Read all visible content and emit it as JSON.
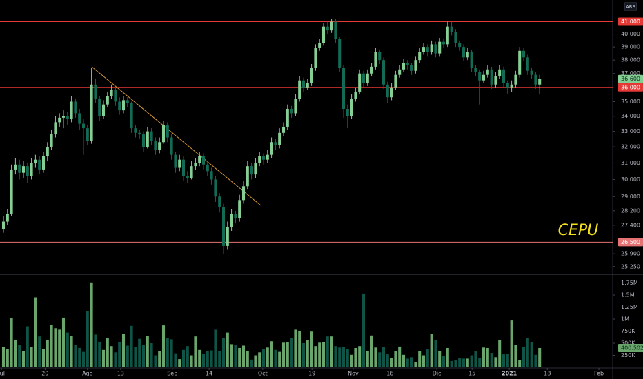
{
  "chart_data": {
    "type": "candlestick",
    "currency": "ARS",
    "annotation": "CEPU",
    "log_scale": true,
    "ylim": [
      24.9,
      42.8
    ],
    "yticks": [
      {
        "value": 25.25,
        "label": "25.250"
      },
      {
        "value": 25.9,
        "label": "25.900"
      },
      {
        "value": 27.4,
        "label": "27.400"
      },
      {
        "value": 28.2,
        "label": "28.200"
      },
      {
        "value": 29,
        "label": "29.000"
      },
      {
        "value": 30,
        "label": "30.000"
      },
      {
        "value": 31,
        "label": "31.000"
      },
      {
        "value": 32,
        "label": "32.000"
      },
      {
        "value": 33,
        "label": "33.000"
      },
      {
        "value": 34,
        "label": "34.000"
      },
      {
        "value": 35,
        "label": "35.000"
      },
      {
        "value": 37,
        "label": "37.000"
      },
      {
        "value": 38,
        "label": "38.000"
      },
      {
        "value": 39,
        "label": "39.000"
      },
      {
        "value": 40,
        "label": "40.000"
      }
    ],
    "xlim": [
      -0.862,
      152.241
    ],
    "xticks": [
      {
        "value": -0.5,
        "label": "Jul"
      },
      {
        "value": 10.4,
        "label": "20"
      },
      {
        "value": 21.0,
        "label": "Ago"
      },
      {
        "value": 29.3,
        "label": "13"
      },
      {
        "value": 42.2,
        "label": "Sep"
      },
      {
        "value": 51.4,
        "label": "14"
      },
      {
        "value": 64.8,
        "label": "Oct"
      },
      {
        "value": 77.1,
        "label": "19"
      },
      {
        "value": 87.4,
        "label": "Nov"
      },
      {
        "value": 96.6,
        "label": "16"
      },
      {
        "value": 108.3,
        "label": "Dic"
      },
      {
        "value": 117.1,
        "label": "15"
      },
      {
        "value": 126.4,
        "label": "2021"
      },
      {
        "value": 135.9,
        "label": "18"
      },
      {
        "value": 148.8,
        "label": "Feb"
      }
    ],
    "up_color": "#86cf94",
    "down_color": "#136b56",
    "volume_up_color": "#6aa56c",
    "volume_down_color": "#0f5446",
    "levels": [
      {
        "value": 41,
        "label": "41.000",
        "color": "#e53935"
      },
      {
        "value": 36,
        "label": "36.000",
        "color": "#e53935"
      },
      {
        "value": 26.5,
        "label": "26.500",
        "color": "#e57373"
      }
    ],
    "trendline": {
      "from": [
        22.07,
        37.5
      ],
      "to": [
        64.3,
        28.5
      ],
      "color": "#d89a3a"
    },
    "last_price_label": "36.600",
    "last_volume_label": "400.502K",
    "open": [
      27.2,
      27.6,
      28.0,
      30.6,
      30.9,
      30.4,
      30.8,
      30.2,
      31.0,
      31.2,
      30.6,
      31.4,
      32.0,
      32.8,
      33.6,
      33.9,
      34.0,
      33.8,
      35.0,
      34.2,
      33.5,
      33.2,
      32.4,
      36.2,
      35.2,
      34.0,
      34.8,
      35.4,
      35.8,
      35.0,
      34.4,
      35.1,
      34.9,
      33.2,
      32.9,
      32.8,
      32.0,
      33.0,
      32.4,
      31.8,
      32.3,
      33.4,
      32.6,
      31.5,
      30.7,
      31.2,
      30.2,
      30.1,
      30.8,
      31.0,
      31.4,
      30.9,
      30.5,
      30.0,
      29.0,
      28.4,
      26.3,
      27.3,
      28.0,
      27.8,
      28.8,
      29.6,
      30.8,
      30.3,
      31.0,
      31.4,
      31.2,
      31.5,
      32.3,
      32.1,
      32.9,
      33.3,
      34.5,
      34.2,
      35.2,
      36.5,
      36.0,
      36.3,
      37.4,
      38.9,
      39.3,
      40.6,
      40.3,
      41.0,
      39.6,
      37.4,
      34.5,
      34.0,
      35.2,
      35.7,
      37.0,
      36.3,
      37.0,
      37.5,
      38.6,
      38.0,
      36.2,
      35.3,
      36.0,
      36.9,
      37.3,
      37.8,
      37.6,
      37.2,
      38.0,
      38.6,
      39.0,
      38.6,
      39.2,
      38.5,
      39.4,
      39.2,
      40.6,
      40.2,
      39.3,
      39.0,
      38.2,
      38.6,
      37.4,
      37.1,
      36.5,
      36.9,
      37.3,
      36.2,
      36.8,
      37.3,
      36.3,
      36.0,
      36.2,
      36.9,
      38.7,
      38.2,
      37.2,
      36.9,
      36.2
    ],
    "high": [
      27.9,
      28.3,
      30.9,
      31.3,
      31.2,
      31.1,
      31.0,
      31.3,
      31.5,
      31.4,
      31.7,
      32.3,
      33.1,
      34.0,
      34.2,
      34.4,
      34.3,
      35.4,
      35.2,
      34.5,
      33.8,
      33.4,
      37.4,
      36.6,
      35.4,
      35.1,
      35.7,
      36.2,
      36.0,
      35.3,
      35.4,
      35.3,
      35.0,
      33.4,
      33.1,
      33.0,
      33.3,
      33.2,
      32.6,
      32.6,
      33.7,
      33.6,
      32.8,
      31.7,
      31.5,
      31.4,
      30.5,
      31.1,
      31.3,
      31.7,
      31.6,
      31.1,
      30.7,
      30.2,
      29.2,
      28.6,
      27.6,
      28.3,
      28.2,
      29.1,
      29.9,
      31.1,
      31.0,
      31.3,
      31.7,
      31.6,
      31.8,
      32.6,
      32.5,
      33.2,
      33.6,
      34.8,
      34.7,
      35.5,
      36.8,
      36.7,
      36.6,
      37.7,
      39.2,
      39.6,
      40.9,
      41.0,
      41.2,
      41.2,
      39.8,
      37.6,
      34.8,
      35.5,
      36.0,
      37.3,
      37.2,
      37.3,
      37.8,
      38.9,
      38.8,
      38.2,
      36.4,
      36.3,
      37.2,
      37.6,
      38.1,
      38.0,
      37.8,
      38.3,
      38.9,
      39.3,
      39.2,
      39.5,
      39.4,
      39.7,
      39.6,
      41.0,
      41.0,
      40.4,
      39.5,
      39.2,
      38.9,
      38.8,
      37.6,
      37.3,
      37.2,
      37.6,
      37.5,
      37.1,
      37.6,
      37.5,
      36.5,
      36.5,
      37.2,
      39.0,
      38.9,
      38.4,
      37.4,
      37.1,
      36.9
    ],
    "low": [
      27.0,
      27.4,
      27.9,
      30.3,
      30.0,
      30.1,
      29.8,
      30.0,
      30.7,
      30.3,
      30.4,
      31.1,
      31.8,
      32.6,
      33.3,
      33.2,
      33.4,
      33.6,
      33.9,
      33.1,
      31.5,
      32.1,
      32.2,
      34.9,
      33.7,
      33.8,
      34.6,
      35.2,
      34.7,
      34.1,
      34.2,
      34.6,
      32.9,
      32.6,
      32.5,
      31.7,
      31.9,
      32.1,
      31.5,
      31.6,
      32.2,
      32.3,
      31.2,
      30.4,
      30.5,
      29.9,
      29.8,
      30.0,
      30.6,
      30.8,
      30.6,
      30.2,
      29.7,
      28.7,
      28.1,
      25.9,
      26.1,
      27.1,
      27.5,
      27.6,
      28.6,
      29.4,
      30.0,
      30.1,
      30.8,
      30.9,
      31.0,
      31.3,
      31.8,
      31.9,
      32.7,
      33.1,
      33.9,
      34.0,
      35.0,
      35.7,
      35.8,
      36.1,
      37.2,
      38.7,
      39.1,
      40.0,
      40.1,
      39.3,
      37.1,
      33.9,
      33.2,
      33.8,
      35.0,
      35.5,
      36.0,
      36.1,
      36.8,
      37.3,
      37.7,
      35.9,
      34.9,
      35.1,
      35.8,
      36.7,
      37.1,
      37.3,
      36.9,
      37.0,
      37.8,
      38.4,
      38.3,
      38.4,
      38.2,
      38.3,
      38.9,
      39.0,
      39.9,
      39.0,
      38.7,
      37.9,
      38.0,
      37.1,
      36.8,
      34.8,
      36.3,
      36.7,
      35.9,
      36.0,
      36.6,
      36.0,
      35.5,
      35.7,
      36.0,
      36.7,
      37.9,
      36.9,
      36.6,
      35.9,
      35.5
    ],
    "close": [
      27.6,
      28.0,
      30.6,
      30.9,
      30.4,
      30.8,
      30.2,
      31.0,
      31.2,
      30.6,
      31.4,
      32.0,
      32.8,
      33.6,
      33.9,
      34.0,
      33.8,
      35.0,
      34.2,
      33.5,
      33.2,
      32.4,
      36.2,
      35.2,
      34.0,
      34.8,
      35.4,
      35.8,
      35.0,
      34.4,
      35.1,
      34.9,
      33.2,
      32.9,
      32.8,
      32.0,
      33.0,
      32.4,
      31.8,
      32.3,
      33.4,
      32.6,
      31.5,
      30.7,
      31.2,
      30.2,
      30.1,
      30.8,
      31.0,
      31.4,
      30.9,
      30.5,
      30.0,
      29.0,
      28.4,
      26.3,
      27.3,
      28.0,
      27.8,
      28.8,
      29.6,
      30.8,
      30.3,
      31.0,
      31.4,
      31.2,
      31.5,
      32.3,
      32.1,
      32.9,
      33.3,
      34.5,
      34.2,
      35.2,
      36.5,
      36.0,
      36.3,
      37.4,
      38.9,
      39.3,
      40.6,
      40.3,
      41.0,
      39.6,
      37.4,
      34.5,
      34.0,
      35.2,
      35.7,
      37.0,
      36.3,
      37.0,
      37.5,
      38.6,
      38.0,
      36.2,
      35.3,
      36.0,
      36.9,
      37.3,
      37.8,
      37.6,
      37.2,
      38.0,
      38.6,
      39.0,
      38.6,
      39.2,
      38.5,
      39.4,
      39.2,
      40.6,
      40.2,
      39.3,
      39.0,
      38.2,
      38.6,
      37.4,
      37.1,
      36.5,
      36.9,
      37.3,
      36.2,
      36.8,
      37.3,
      36.3,
      36.0,
      36.2,
      36.9,
      38.7,
      38.2,
      37.2,
      36.9,
      36.2,
      36.6
    ],
    "volume": [
      420000,
      380000,
      1020000,
      560000,
      470000,
      330000,
      850000,
      420000,
      1450000,
      640000,
      380000,
      560000,
      880000,
      810000,
      780000,
      1030000,
      720000,
      650000,
      470000,
      400000,
      320000,
      1160000,
      1760000,
      680000,
      530000,
      360000,
      600000,
      440000,
      310000,
      520000,
      690000,
      450000,
      860000,
      420000,
      590000,
      460000,
      650000,
      500000,
      250000,
      330000,
      870000,
      610000,
      580000,
      290000,
      170000,
      360000,
      440000,
      250000,
      640000,
      360000,
      280000,
      340000,
      350000,
      780000,
      340000,
      610000,
      720000,
      480000,
      470000,
      400000,
      450000,
      330000,
      160000,
      250000,
      310000,
      380000,
      410000,
      540000,
      360000,
      320000,
      510000,
      520000,
      610000,
      780000,
      750000,
      500000,
      570000,
      740000,
      440000,
      510000,
      520000,
      640000,
      640000,
      440000,
      410000,
      420000,
      380000,
      260000,
      400000,
      440000,
      1530000,
      330000,
      660000,
      410000,
      310000,
      420000,
      270000,
      190000,
      340000,
      430000,
      260000,
      180000,
      210000,
      100000,
      330000,
      250000,
      370000,
      690000,
      560000,
      330000,
      230000,
      400000,
      130000,
      150000,
      200000,
      180000,
      180000,
      250000,
      340000,
      190000,
      410000,
      400000,
      300000,
      210000,
      560000,
      270000,
      280000,
      970000,
      470000,
      150000,
      430000,
      610000,
      520000,
      260000,
      400502
    ],
    "volume_ylim": [
      0,
      1900000
    ],
    "volume_yticks": [
      {
        "value": 250000,
        "label": "250K"
      },
      {
        "value": 500000,
        "label": "500K"
      },
      {
        "value": 750000,
        "label": "750K"
      },
      {
        "value": 1000000,
        "label": "1M"
      },
      {
        "value": 1250000,
        "label": "1.25M"
      },
      {
        "value": 1500000,
        "label": "1.5M"
      },
      {
        "value": 1750000,
        "label": "1.75M"
      }
    ]
  }
}
